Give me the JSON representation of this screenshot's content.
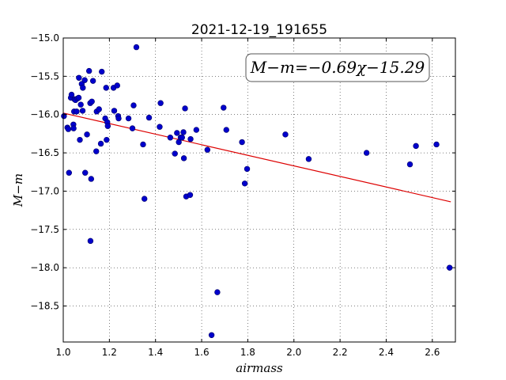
{
  "chart_data": {
    "type": "scatter",
    "title": "2021-12-19_191655",
    "xlabel": "airmass",
    "ylabel": "M−m",
    "xlim": [
      1.0,
      2.7
    ],
    "ylim": [
      -15.0,
      -18.97
    ],
    "y_inverted": true,
    "xticks": [
      "1.0",
      "1.2",
      "1.4",
      "1.6",
      "1.8",
      "2.0",
      "2.2",
      "2.4",
      "2.6"
    ],
    "xtick_values": [
      1.0,
      1.2,
      1.4,
      1.6,
      1.8,
      2.0,
      2.2,
      2.4,
      2.6
    ],
    "yticks": [
      "−15.0",
      "−15.5",
      "−16.0",
      "−16.5",
      "−17.0",
      "−17.5",
      "−18.0",
      "−18.5"
    ],
    "ytick_values": [
      -15.0,
      -15.5,
      -16.0,
      -16.5,
      -17.0,
      -17.5,
      -18.0,
      -18.5
    ],
    "grid": true,
    "annotation": "M−m=−0.69χ−15.29",
    "annotation_placement": "top-right",
    "point_color": "#0000cc",
    "fit_color": "#dd0000",
    "fit": {
      "slope": -0.69,
      "intercept": -15.29,
      "x_range": [
        1.0,
        2.68
      ]
    },
    "points": [
      [
        1.003,
        -16.02
      ],
      [
        1.018,
        -16.17
      ],
      [
        1.022,
        -16.19
      ],
      [
        1.025,
        -16.76
      ],
      [
        1.033,
        -15.78
      ],
      [
        1.036,
        -15.74
      ],
      [
        1.044,
        -16.13
      ],
      [
        1.045,
        -16.18
      ],
      [
        1.047,
        -15.96
      ],
      [
        1.049,
        -15.8
      ],
      [
        1.053,
        -15.81
      ],
      [
        1.058,
        -15.96
      ],
      [
        1.062,
        -15.79
      ],
      [
        1.067,
        -15.78
      ],
      [
        1.068,
        -15.52
      ],
      [
        1.072,
        -16.33
      ],
      [
        1.076,
        -15.87
      ],
      [
        1.08,
        -15.6
      ],
      [
        1.084,
        -15.95
      ],
      [
        1.085,
        -15.65
      ],
      [
        1.093,
        -15.55
      ],
      [
        1.095,
        -16.76
      ],
      [
        1.103,
        -16.26
      ],
      [
        1.112,
        -15.43
      ],
      [
        1.117,
        -15.85
      ],
      [
        1.118,
        -17.65
      ],
      [
        1.121,
        -16.84
      ],
      [
        1.124,
        -15.83
      ],
      [
        1.129,
        -15.56
      ],
      [
        1.143,
        -16.48
      ],
      [
        1.145,
        -15.96
      ],
      [
        1.155,
        -15.93
      ],
      [
        1.163,
        -16.38
      ],
      [
        1.167,
        -15.44
      ],
      [
        1.182,
        -16.05
      ],
      [
        1.186,
        -15.65
      ],
      [
        1.188,
        -16.33
      ],
      [
        1.191,
        -16.1
      ],
      [
        1.193,
        -16.15
      ],
      [
        1.218,
        -15.65
      ],
      [
        1.221,
        -15.95
      ],
      [
        1.234,
        -15.62
      ],
      [
        1.238,
        -16.02
      ],
      [
        1.24,
        -16.05
      ],
      [
        1.283,
        -16.05
      ],
      [
        1.3,
        -16.18
      ],
      [
        1.305,
        -15.88
      ],
      [
        1.317,
        -15.12
      ],
      [
        1.346,
        -16.39
      ],
      [
        1.352,
        -17.1
      ],
      [
        1.372,
        -16.04
      ],
      [
        1.418,
        -16.16
      ],
      [
        1.422,
        -15.85
      ],
      [
        1.464,
        -16.3
      ],
      [
        1.484,
        -16.51
      ],
      [
        1.493,
        -16.24
      ],
      [
        1.501,
        -16.36
      ],
      [
        1.509,
        -16.3
      ],
      [
        1.515,
        -16.3
      ],
      [
        1.521,
        -16.23
      ],
      [
        1.523,
        -16.57
      ],
      [
        1.528,
        -15.92
      ],
      [
        1.533,
        -17.07
      ],
      [
        1.55,
        -17.05
      ],
      [
        1.552,
        -16.32
      ],
      [
        1.577,
        -16.2
      ],
      [
        1.625,
        -16.46
      ],
      [
        1.643,
        -18.88
      ],
      [
        1.668,
        -18.32
      ],
      [
        1.695,
        -15.91
      ],
      [
        1.707,
        -16.2
      ],
      [
        1.775,
        -16.36
      ],
      [
        1.787,
        -16.9
      ],
      [
        1.797,
        -16.71
      ],
      [
        1.963,
        -16.26
      ],
      [
        2.064,
        -16.58
      ],
      [
        2.315,
        -16.5
      ],
      [
        2.503,
        -16.65
      ],
      [
        2.529,
        -16.41
      ],
      [
        2.618,
        -16.39
      ],
      [
        2.675,
        -18.0
      ]
    ]
  }
}
